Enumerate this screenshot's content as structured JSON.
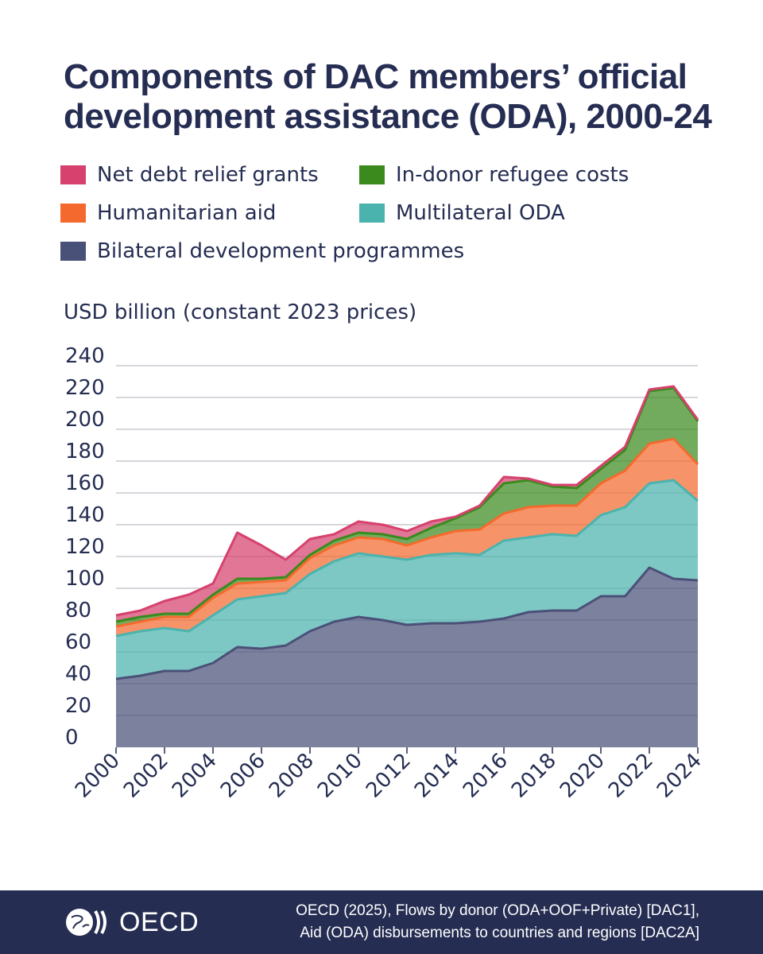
{
  "title": "Components of DAC members’ official development assistance (ODA), 2000-24",
  "legend": [
    {
      "label": "Net debt relief grants",
      "color": "#d6416e"
    },
    {
      "label": "In-donor refugee costs",
      "color": "#3b8a1e"
    },
    {
      "label": "Humanitarian aid",
      "color": "#f46a2e"
    },
    {
      "label": "Multilateral ODA",
      "color": "#4bb3ad"
    },
    {
      "label": "Bilateral development programmes",
      "color": "#4a5178"
    }
  ],
  "unit_label": "USD billion (constant 2023 prices)",
  "chart_data": {
    "type": "area",
    "stacked": true,
    "x": [
      2000,
      2001,
      2002,
      2003,
      2004,
      2005,
      2006,
      2007,
      2008,
      2009,
      2010,
      2011,
      2012,
      2013,
      2014,
      2015,
      2016,
      2017,
      2018,
      2019,
      2020,
      2021,
      2022,
      2023,
      2024
    ],
    "x_tick_labels": [
      "2000",
      "2002",
      "2004",
      "2006",
      "2008",
      "2010",
      "2012",
      "2014",
      "2016",
      "2018",
      "2020",
      "2022",
      "2024"
    ],
    "y_tick_labels": [
      "0",
      "20",
      "40",
      "60",
      "80",
      "100",
      "120",
      "140",
      "160",
      "180",
      "200",
      "220",
      "240"
    ],
    "ylim": [
      0,
      240
    ],
    "ylabel": "USD billion (constant 2023 prices)",
    "grid": true,
    "series": [
      {
        "name": "Bilateral development programmes",
        "color": "#4a5178",
        "values": [
          43,
          45,
          48,
          48,
          53,
          63,
          62,
          64,
          73,
          79,
          82,
          80,
          77,
          78,
          78,
          79,
          81,
          85,
          86,
          86,
          95,
          95,
          113,
          106,
          105
        ]
      },
      {
        "name": "Multilateral ODA",
        "color": "#4bb3ad",
        "values": [
          27,
          28,
          27,
          25,
          30,
          30,
          33,
          33,
          36,
          38,
          40,
          40,
          41,
          43,
          44,
          42,
          49,
          47,
          48,
          47,
          51,
          56,
          53,
          62,
          50
        ]
      },
      {
        "name": "Humanitarian aid",
        "color": "#f46a2e",
        "values": [
          6,
          6,
          7,
          9,
          11,
          10,
          9,
          8,
          10,
          10,
          10,
          11,
          9,
          11,
          14,
          16,
          17,
          19,
          18,
          19,
          20,
          23,
          25,
          26,
          23
        ]
      },
      {
        "name": "In-donor refugee costs",
        "color": "#3b8a1e",
        "values": [
          3,
          3,
          2,
          2,
          2,
          3,
          2,
          2,
          2,
          3,
          3,
          3,
          4,
          6,
          8,
          14,
          19,
          17,
          12,
          11,
          9,
          13,
          33,
          32,
          27
        ]
      },
      {
        "name": "Net debt relief grants",
        "color": "#d6416e",
        "values": [
          4,
          4,
          8,
          12,
          7,
          29,
          21,
          11,
          10,
          4,
          7,
          6,
          5,
          4,
          1,
          1,
          4,
          1,
          1,
          2,
          2,
          2,
          1,
          1,
          1
        ]
      }
    ]
  },
  "footer": {
    "logo_text": "OECD",
    "source_line1": "OECD (2025), Flows by donor (ODA+OOF+Private) [DAC1],",
    "source_line2": "Aid (ODA) disbursements to countries and regions [DAC2A]"
  }
}
